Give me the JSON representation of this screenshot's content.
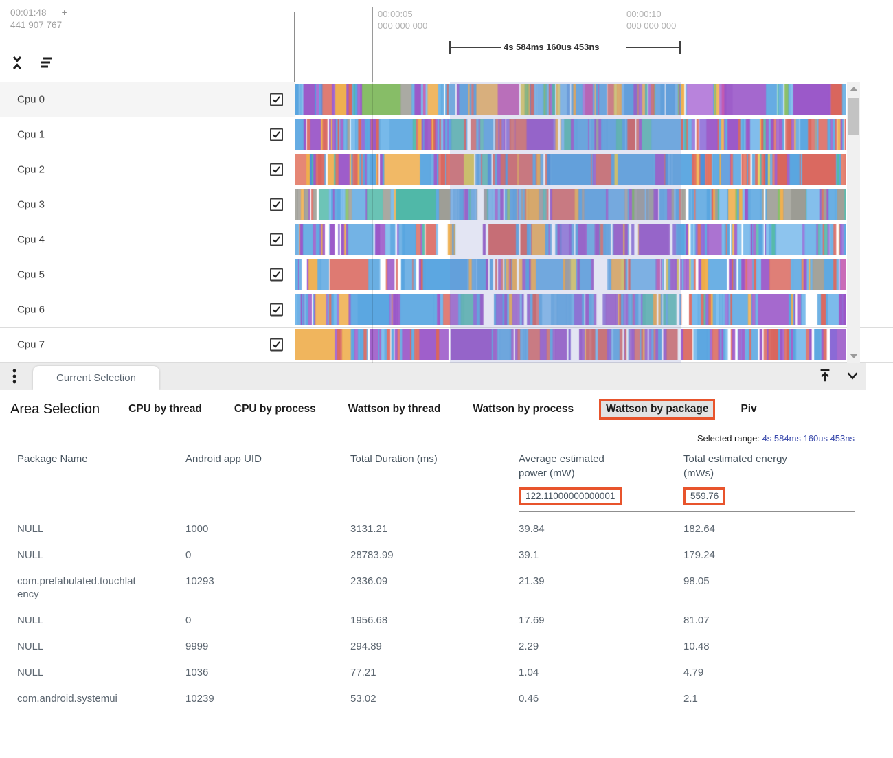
{
  "timeline": {
    "offset_time": "00:01:48",
    "offset_plus": "+",
    "offset_ns": "441 907 767",
    "ticks": [
      {
        "time": "00:00:05",
        "frac": "000 000 000"
      },
      {
        "time": "00:00:10",
        "frac": "000 000 000"
      }
    ],
    "selection_duration": "4s 584ms 160us 453ns"
  },
  "tracks": [
    {
      "label": "Cpu 0",
      "checked": true
    },
    {
      "label": "Cpu 1",
      "checked": true
    },
    {
      "label": "Cpu 2",
      "checked": true
    },
    {
      "label": "Cpu 3",
      "checked": true
    },
    {
      "label": "Cpu 4",
      "checked": true
    },
    {
      "label": "Cpu 5",
      "checked": true
    },
    {
      "label": "Cpu 6",
      "checked": true
    },
    {
      "label": "Cpu 7",
      "checked": true
    }
  ],
  "tab_bar": {
    "active_tab": "Current Selection"
  },
  "detail": {
    "title": "Area Selection",
    "views": [
      {
        "label": "CPU by thread",
        "selected": false
      },
      {
        "label": "CPU by process",
        "selected": false
      },
      {
        "label": "Wattson by thread",
        "selected": false
      },
      {
        "label": "Wattson by process",
        "selected": false
      },
      {
        "label": "Wattson by package",
        "selected": true
      },
      {
        "label": "Piv",
        "selected": false
      }
    ],
    "selected_range_label": "Selected range:",
    "selected_range_value": "4s 584ms 160us 453ns",
    "table": {
      "columns": [
        "Package Name",
        "Android app UID",
        "Total Duration (ms)",
        "Average estimated power (mW)",
        "Total estimated energy (mWs)"
      ],
      "totals": {
        "average_power_mw": "122.11000000000001",
        "total_energy_mws": "559.76"
      },
      "rows": [
        [
          "NULL",
          "1000",
          "3131.21",
          "39.84",
          "182.64"
        ],
        [
          "NULL",
          "0",
          "28783.99",
          "39.1",
          "179.24"
        ],
        [
          "com.prefabulated.touchlatency",
          "10293",
          "2336.09",
          "21.39",
          "98.05"
        ],
        [
          "NULL",
          "0",
          "1956.68",
          "17.69",
          "81.07"
        ],
        [
          "NULL",
          "9999",
          "294.89",
          "2.29",
          "10.48"
        ],
        [
          "NULL",
          "1036",
          "77.21",
          "1.04",
          "4.79"
        ],
        [
          "com.android.systemui",
          "10239",
          "53.02",
          "0.46",
          "2.1"
        ]
      ]
    }
  },
  "colors": {
    "accent": "#e8542c",
    "link": "#3949ab"
  }
}
